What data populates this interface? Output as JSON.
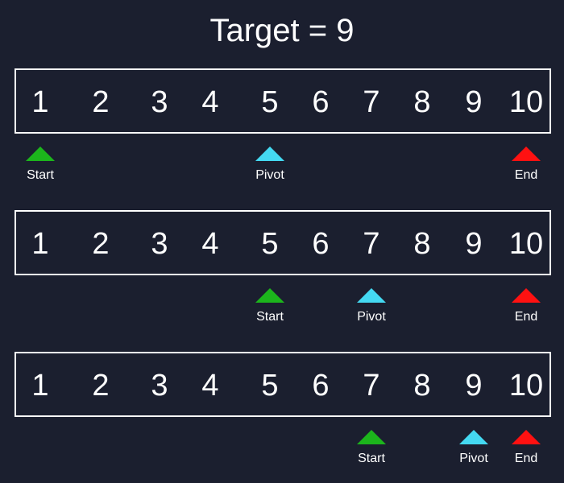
{
  "title": "Target = 9",
  "colors": {
    "background": "#1b1f2f",
    "start": "#1cb51c",
    "pivot": "#44d9f2",
    "end": "#ff1111"
  },
  "rows": [
    {
      "values": [
        "1",
        "2",
        "3",
        "4",
        "5",
        "6",
        "7",
        "8",
        "9",
        "10"
      ],
      "markers": [
        {
          "label": "Start",
          "index": 0,
          "role": "start"
        },
        {
          "label": "Pivot",
          "index": 4,
          "role": "pivot"
        },
        {
          "label": "End",
          "index": 9,
          "role": "end"
        }
      ]
    },
    {
      "values": [
        "1",
        "2",
        "3",
        "4",
        "5",
        "6",
        "7",
        "8",
        "9",
        "10"
      ],
      "markers": [
        {
          "label": "Start",
          "index": 4,
          "role": "start"
        },
        {
          "label": "Pivot",
          "index": 6,
          "role": "pivot"
        },
        {
          "label": "End",
          "index": 9,
          "role": "end"
        }
      ]
    },
    {
      "values": [
        "1",
        "2",
        "3",
        "4",
        "5",
        "6",
        "7",
        "8",
        "9",
        "10"
      ],
      "markers": [
        {
          "label": "Start",
          "index": 6,
          "role": "start"
        },
        {
          "label": "Pivot",
          "index": 8,
          "role": "pivot"
        },
        {
          "label": "End",
          "index": 9,
          "role": "end"
        }
      ]
    }
  ]
}
